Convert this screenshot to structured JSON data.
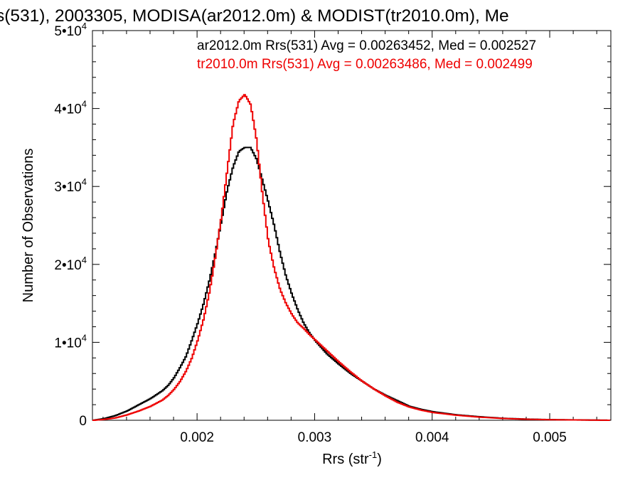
{
  "chart_data": {
    "type": "line",
    "title": "s(531), 2003305, MODISA(ar2012.0m) & MODIST(tr2010.0m), Me",
    "xlabel": "Rrs (str",
    "xlabel_sup": "-1",
    "xlabel_close": ")",
    "ylabel": "Number of Observations",
    "xlim": [
      0.00111,
      0.00552
    ],
    "ylim": [
      0,
      50000
    ],
    "x_ticks": [
      {
        "value": 0.002,
        "label": "0.002"
      },
      {
        "value": 0.003,
        "label": "0.003"
      },
      {
        "value": 0.004,
        "label": "0.004"
      },
      {
        "value": 0.005,
        "label": "0.005"
      }
    ],
    "y_ticks": [
      {
        "value": 0,
        "base": "0",
        "exp": ""
      },
      {
        "value": 10000,
        "base": "1•10",
        "exp": "4"
      },
      {
        "value": 20000,
        "base": "2•10",
        "exp": "4"
      },
      {
        "value": 30000,
        "base": "3•10",
        "exp": "4"
      },
      {
        "value": 40000,
        "base": "4•10",
        "exp": "4"
      },
      {
        "value": 50000,
        "base": "5•10",
        "exp": "4"
      }
    ],
    "grid": false,
    "legend_position": "top-right",
    "step_style": "histogram",
    "series": [
      {
        "name": "ar2012.0m",
        "label": "ar2012.0m Rrs(531) Avg = 0.00263452, Med = 0.002527",
        "color": "#000000",
        "x": [
          0.00111,
          0.0012,
          0.0013,
          0.0014,
          0.0015,
          0.0016,
          0.0017,
          0.00175,
          0.0018,
          0.00185,
          0.0019,
          0.00195,
          0.002,
          0.00205,
          0.0021,
          0.00215,
          0.0022,
          0.00225,
          0.0023,
          0.00235,
          0.0024,
          0.00245,
          0.0025,
          0.00255,
          0.0026,
          0.00265,
          0.0027,
          0.00275,
          0.0028,
          0.00285,
          0.0029,
          0.00295,
          0.003,
          0.0031,
          0.0032,
          0.0033,
          0.0034,
          0.0035,
          0.0036,
          0.0037,
          0.0038,
          0.0039,
          0.004,
          0.0042,
          0.0044,
          0.0046,
          0.0048,
          0.005,
          0.00552
        ],
        "y": [
          0,
          200,
          600,
          1200,
          2000,
          2800,
          3800,
          4500,
          5500,
          6800,
          8200,
          10300,
          12500,
          15000,
          18000,
          21500,
          25500,
          29500,
          32500,
          34500,
          35000,
          35000,
          33500,
          30800,
          28000,
          25000,
          21500,
          18500,
          16200,
          14200,
          12500,
          11200,
          10200,
          8500,
          7200,
          6000,
          5000,
          4000,
          3200,
          2500,
          1800,
          1400,
          1100,
          700,
          450,
          250,
          150,
          80,
          0
        ]
      },
      {
        "name": "tr2010.0m",
        "label": "tr2010.0m Rrs(531) Avg = 0.00263486, Med = 0.002499",
        "color": "#ee0000",
        "x": [
          0.00111,
          0.0012,
          0.0013,
          0.0014,
          0.0015,
          0.0016,
          0.0017,
          0.00175,
          0.0018,
          0.00185,
          0.0019,
          0.00195,
          0.002,
          0.00205,
          0.0021,
          0.00215,
          0.0022,
          0.00225,
          0.0023,
          0.00235,
          0.0024,
          0.00245,
          0.0025,
          0.00255,
          0.0026,
          0.00265,
          0.0027,
          0.00275,
          0.0028,
          0.00285,
          0.0029,
          0.00295,
          0.003,
          0.0031,
          0.0032,
          0.0033,
          0.0034,
          0.0035,
          0.0036,
          0.0037,
          0.0038,
          0.0039,
          0.004,
          0.0042,
          0.0044,
          0.0046,
          0.0048,
          0.005,
          0.00552
        ],
        "y": [
          0,
          100,
          300,
          700,
          1200,
          1800,
          2600,
          3200,
          4000,
          5000,
          6300,
          8000,
          10300,
          13000,
          16500,
          21000,
          26000,
          32000,
          38000,
          41000,
          41800,
          40500,
          36000,
          29000,
          23000,
          19500,
          16800,
          15000,
          13600,
          12500,
          11800,
          11000,
          10300,
          8900,
          7500,
          6200,
          5000,
          4000,
          3100,
          2300,
          1700,
          1300,
          1000,
          650,
          400,
          230,
          130,
          70,
          0
        ]
      }
    ]
  }
}
